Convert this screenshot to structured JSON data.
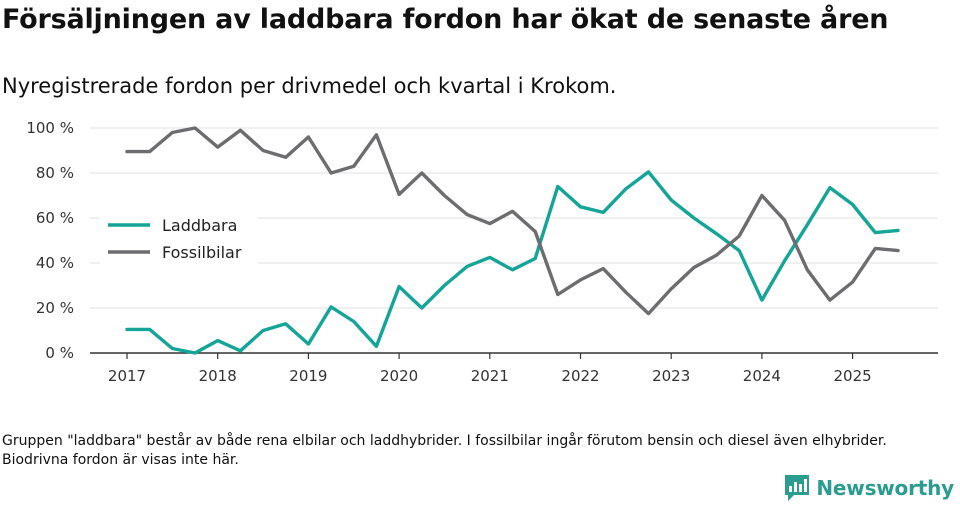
{
  "header": {
    "title": "Försäljningen av laddbara fordon har ökat de senaste åren",
    "subtitle": "Nyregistrerade fordon per drivmedel och kvartal i Krokom."
  },
  "footnote": "Gruppen \"laddbara\" består av både rena elbilar och laddhybrider. I fossilbilar ingår förutom bensin och diesel även elhybrider. Biodrivna fordon är visas inte här.",
  "brand": {
    "name": "Newsworthy",
    "icon": "newsworthy-logo-icon"
  },
  "chart_data": {
    "type": "line",
    "title": "Försäljningen av laddbara fordon har ökat de senaste åren",
    "subtitle": "Nyregistrerade fordon per drivmedel och kvartal i Krokom.",
    "xlabel": "",
    "ylabel": "",
    "ylim": [
      0,
      100
    ],
    "xlim": [
      2017,
      2025.5
    ],
    "yticks": [
      0,
      20,
      40,
      60,
      80,
      100
    ],
    "ytick_labels": [
      "0 %",
      "20 %",
      "40 %",
      "60 %",
      "80 %",
      "100 %"
    ],
    "xticks": [
      2017,
      2018,
      2019,
      2020,
      2021,
      2022,
      2023,
      2024,
      2025
    ],
    "xtick_labels": [
      "2017",
      "2018",
      "2019",
      "2020",
      "2021",
      "2022",
      "2023",
      "2024",
      "2025"
    ],
    "grid": true,
    "legend_position": "middle-left",
    "x": [
      2017.0,
      2017.25,
      2017.5,
      2017.75,
      2018.0,
      2018.25,
      2018.5,
      2018.75,
      2019.0,
      2019.25,
      2019.5,
      2019.75,
      2020.0,
      2020.25,
      2020.5,
      2020.75,
      2021.0,
      2021.25,
      2021.5,
      2021.75,
      2022.0,
      2022.25,
      2022.5,
      2022.75,
      2023.0,
      2023.25,
      2023.5,
      2023.75,
      2024.0,
      2024.25,
      2024.5,
      2024.75,
      2025.0,
      2025.25,
      2025.5
    ],
    "series": [
      {
        "name": "Laddbara",
        "color": "#14a598",
        "values": [
          10.5,
          10.5,
          2,
          0,
          5.5,
          1,
          10,
          13,
          4,
          20.5,
          14,
          3,
          29.5,
          20,
          30,
          38.5,
          42.5,
          37,
          42,
          74,
          65,
          62.5,
          73,
          80.5,
          68,
          60,
          53,
          45.5,
          23.5,
          41,
          57,
          73.5,
          66,
          53.5,
          54.5
        ]
      },
      {
        "name": "Fossilbilar",
        "color": "#6d6d70",
        "values": [
          89.5,
          89.5,
          98,
          100,
          91.5,
          99,
          90,
          87,
          96,
          80,
          83,
          97,
          70.5,
          80,
          70,
          61.5,
          57.5,
          63,
          54,
          26,
          32.5,
          37.5,
          27,
          17.5,
          28.5,
          38,
          43.5,
          52,
          70,
          59,
          37,
          23.5,
          31.5,
          46.5,
          45.5
        ]
      }
    ]
  }
}
